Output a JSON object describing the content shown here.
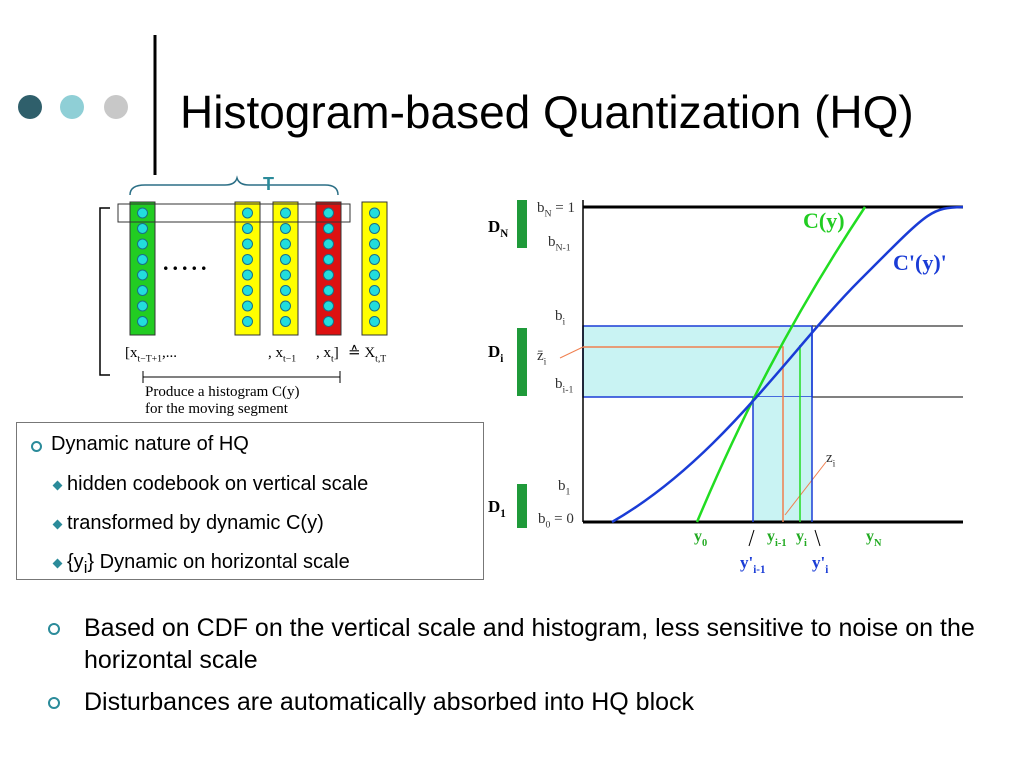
{
  "header": {
    "title": "Histogram-based Quantization (HQ)"
  },
  "left_diagram": {
    "window_label": "T",
    "ellipsis": ".....",
    "sequence": [
      {
        "text": "[x",
        "sub": "t−T+1",
        "post": ",..."
      },
      {
        "text": ", x",
        "sub": "t−1"
      },
      {
        "text": ", x",
        "sub": "t",
        "post": "]"
      },
      {
        "text": "≙ X",
        "sub": "t,T"
      }
    ],
    "caption": [
      "Produce a histogram C(y)",
      "for the moving segment"
    ]
  },
  "info_box": {
    "heading": "Dynamic nature of HQ",
    "items": [
      {
        "text": "hidden codebook on vertical scale"
      },
      {
        "text": "transformed by dynamic C(y)"
      },
      {
        "text": "{y",
        "sub": "i",
        "post": "} Dynamic on horizontal scale"
      }
    ]
  },
  "right_diagram": {
    "labels": [
      {
        "text": "D",
        "sub": "N"
      },
      {
        "text": "D",
        "sub": "i"
      },
      {
        "text": "D",
        "sub": "1"
      },
      {
        "text": "b",
        "sub": "N",
        "post": " = 1"
      },
      {
        "text": "b",
        "sub": "N-1"
      },
      {
        "text": "b",
        "sub": "i"
      },
      {
        "text": "z̄",
        "sub": "i"
      },
      {
        "text": "b",
        "sub": "i-1"
      },
      {
        "text": "b",
        "sub": "1"
      },
      {
        "text": "b",
        "sub": "0",
        "post": " = 0"
      },
      {
        "text": "C(y)"
      },
      {
        "text": "C'(y)'"
      },
      {
        "text": "z",
        "sub": "i"
      },
      {
        "text": "y",
        "sub": "0"
      },
      {
        "text": "y",
        "sub": "i-1"
      },
      {
        "text": "y",
        "sub": "i"
      },
      {
        "text": "y",
        "sub": "N"
      },
      {
        "text": "y'",
        "sub": "i-1"
      },
      {
        "text": "y'",
        "sub": "i"
      }
    ]
  },
  "bullets": [
    "Based on CDF on the vertical scale and histogram, less sensitive to noise on the horizontal scale",
    "Disturbances are automatically absorbed into HQ block"
  ]
}
